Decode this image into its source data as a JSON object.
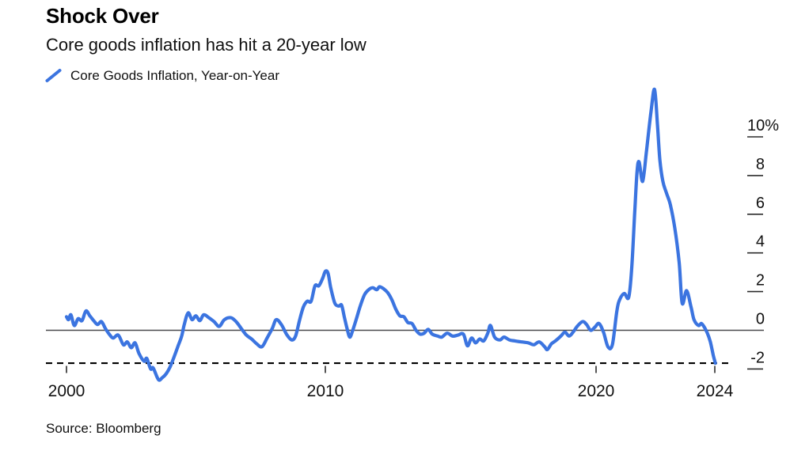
{
  "header": {
    "title": "Shock Over",
    "subtitle": "Core goods inflation has hit a 20-year low"
  },
  "legend": {
    "label": "Core Goods Inflation, Year-on-Year",
    "swatch_icon": "blue-diagonal-line-swatch-icon"
  },
  "source": "Source: Bloomberg",
  "colors": {
    "line": "#3B74E0",
    "zero_line": "#4A4A4D",
    "dashed_line": "#000000",
    "tick": "#2B2B2B",
    "text": "#111111",
    "background": "#FFFFFF"
  },
  "chart_data": {
    "type": "line",
    "title": "Shock Over",
    "subtitle": "Core goods inflation has hit a 20-year low",
    "xlabel": "",
    "ylabel": "Core goods inflation, year-on-year, %",
    "xlim": [
      2000,
      2024.3
    ],
    "ylim": [
      -2.8,
      12.6
    ],
    "grid": "none, zero baseline only",
    "legend_position": "top-left",
    "x_ticks": [
      {
        "year": 2000,
        "label": "2000"
      },
      {
        "year": 2010,
        "label": "2010"
      },
      {
        "year": 2020,
        "label": "2020"
      },
      {
        "year": 2024,
        "label": "2024"
      }
    ],
    "y_ticks": [
      {
        "value": 10,
        "label": "10%"
      },
      {
        "value": 8,
        "label": "8"
      },
      {
        "value": 6,
        "label": "6"
      },
      {
        "value": 4,
        "label": "4"
      },
      {
        "value": 2,
        "label": "2"
      },
      {
        "value": 0,
        "label": "0"
      },
      {
        "value": -2,
        "label": "-2"
      }
    ],
    "annotations": [
      {
        "type": "dashed-horizontal-line",
        "value": -1.7
      }
    ],
    "series": [
      {
        "name": "Core Goods Inflation, Year-on-Year",
        "color": "#3B74E0",
        "points": [
          [
            2000.0,
            0.7
          ],
          [
            2000.08,
            0.55
          ],
          [
            2000.17,
            0.8
          ],
          [
            2000.3,
            0.25
          ],
          [
            2000.45,
            0.6
          ],
          [
            2000.6,
            0.5
          ],
          [
            2000.75,
            1.0
          ],
          [
            2000.9,
            0.75
          ],
          [
            2001.05,
            0.5
          ],
          [
            2001.2,
            0.3
          ],
          [
            2001.35,
            0.45
          ],
          [
            2001.5,
            0.1
          ],
          [
            2001.65,
            -0.2
          ],
          [
            2001.8,
            -0.4
          ],
          [
            2002.0,
            -0.25
          ],
          [
            2002.2,
            -0.75
          ],
          [
            2002.35,
            -0.6
          ],
          [
            2002.5,
            -0.9
          ],
          [
            2002.65,
            -0.65
          ],
          [
            2002.8,
            -1.2
          ],
          [
            2003.0,
            -1.6
          ],
          [
            2003.1,
            -1.45
          ],
          [
            2003.25,
            -2.0
          ],
          [
            2003.35,
            -1.95
          ],
          [
            2003.55,
            -2.55
          ],
          [
            2003.7,
            -2.45
          ],
          [
            2003.85,
            -2.25
          ],
          [
            2004.0,
            -1.9
          ],
          [
            2004.15,
            -1.4
          ],
          [
            2004.3,
            -0.85
          ],
          [
            2004.45,
            -0.3
          ],
          [
            2004.55,
            0.3
          ],
          [
            2004.7,
            0.9
          ],
          [
            2004.85,
            0.55
          ],
          [
            2005.0,
            0.75
          ],
          [
            2005.15,
            0.5
          ],
          [
            2005.3,
            0.8
          ],
          [
            2005.5,
            0.65
          ],
          [
            2005.7,
            0.45
          ],
          [
            2005.9,
            0.2
          ],
          [
            2006.1,
            0.55
          ],
          [
            2006.35,
            0.65
          ],
          [
            2006.55,
            0.45
          ],
          [
            2006.75,
            0.1
          ],
          [
            2006.95,
            -0.25
          ],
          [
            2007.15,
            -0.45
          ],
          [
            2007.35,
            -0.7
          ],
          [
            2007.55,
            -0.85
          ],
          [
            2007.75,
            -0.4
          ],
          [
            2007.95,
            0.1
          ],
          [
            2008.1,
            0.55
          ],
          [
            2008.3,
            0.3
          ],
          [
            2008.5,
            -0.2
          ],
          [
            2008.7,
            -0.5
          ],
          [
            2008.85,
            -0.3
          ],
          [
            2009.0,
            0.5
          ],
          [
            2009.15,
            1.2
          ],
          [
            2009.3,
            1.5
          ],
          [
            2009.45,
            1.5
          ],
          [
            2009.6,
            2.3
          ],
          [
            2009.75,
            2.3
          ],
          [
            2009.9,
            2.7
          ],
          [
            2010.0,
            3.05
          ],
          [
            2010.1,
            2.95
          ],
          [
            2010.2,
            2.2
          ],
          [
            2010.35,
            1.4
          ],
          [
            2010.5,
            1.25
          ],
          [
            2010.6,
            1.3
          ],
          [
            2010.7,
            0.7
          ],
          [
            2010.8,
            0.1
          ],
          [
            2010.9,
            -0.35
          ],
          [
            2011.0,
            -0.05
          ],
          [
            2011.15,
            0.6
          ],
          [
            2011.3,
            1.3
          ],
          [
            2011.45,
            1.85
          ],
          [
            2011.6,
            2.1
          ],
          [
            2011.75,
            2.2
          ],
          [
            2011.9,
            2.1
          ],
          [
            2012.0,
            2.25
          ],
          [
            2012.15,
            2.15
          ],
          [
            2012.3,
            1.95
          ],
          [
            2012.45,
            1.6
          ],
          [
            2012.6,
            1.1
          ],
          [
            2012.75,
            0.75
          ],
          [
            2012.9,
            0.7
          ],
          [
            2013.05,
            0.4
          ],
          [
            2013.2,
            0.35
          ],
          [
            2013.35,
            0.0
          ],
          [
            2013.5,
            -0.2
          ],
          [
            2013.65,
            -0.15
          ],
          [
            2013.8,
            0.05
          ],
          [
            2013.95,
            -0.2
          ],
          [
            2014.15,
            -0.3
          ],
          [
            2014.3,
            -0.35
          ],
          [
            2014.5,
            -0.15
          ],
          [
            2014.7,
            -0.3
          ],
          [
            2014.9,
            -0.25
          ],
          [
            2015.1,
            -0.2
          ],
          [
            2015.25,
            -0.8
          ],
          [
            2015.4,
            -0.4
          ],
          [
            2015.55,
            -0.65
          ],
          [
            2015.7,
            -0.45
          ],
          [
            2015.85,
            -0.55
          ],
          [
            2016.0,
            -0.15
          ],
          [
            2016.1,
            0.25
          ],
          [
            2016.25,
            -0.35
          ],
          [
            2016.45,
            -0.5
          ],
          [
            2016.6,
            -0.35
          ],
          [
            2016.8,
            -0.5
          ],
          [
            2017.0,
            -0.55
          ],
          [
            2017.25,
            -0.6
          ],
          [
            2017.5,
            -0.65
          ],
          [
            2017.7,
            -0.75
          ],
          [
            2017.9,
            -0.6
          ],
          [
            2018.1,
            -0.85
          ],
          [
            2018.2,
            -1.0
          ],
          [
            2018.35,
            -0.7
          ],
          [
            2018.5,
            -0.55
          ],
          [
            2018.7,
            -0.3
          ],
          [
            2018.85,
            -0.1
          ],
          [
            2019.0,
            -0.3
          ],
          [
            2019.15,
            -0.1
          ],
          [
            2019.3,
            0.2
          ],
          [
            2019.5,
            0.45
          ],
          [
            2019.65,
            0.3
          ],
          [
            2019.8,
            0.0
          ],
          [
            2019.95,
            0.15
          ],
          [
            2020.1,
            0.35
          ],
          [
            2020.25,
            -0.1
          ],
          [
            2020.4,
            -0.85
          ],
          [
            2020.55,
            -0.75
          ],
          [
            2020.7,
            1.0
          ],
          [
            2020.8,
            1.6
          ],
          [
            2020.95,
            1.9
          ],
          [
            2021.1,
            1.7
          ],
          [
            2021.2,
            3.2
          ],
          [
            2021.3,
            6.0
          ],
          [
            2021.38,
            8.2
          ],
          [
            2021.45,
            8.7
          ],
          [
            2021.57,
            7.7
          ],
          [
            2021.7,
            9.3
          ],
          [
            2021.85,
            11.3
          ],
          [
            2021.97,
            12.45
          ],
          [
            2022.07,
            10.6
          ],
          [
            2022.15,
            8.8
          ],
          [
            2022.25,
            7.7
          ],
          [
            2022.37,
            7.1
          ],
          [
            2022.5,
            6.5
          ],
          [
            2022.65,
            5.3
          ],
          [
            2022.8,
            3.5
          ],
          [
            2022.9,
            1.4
          ],
          [
            2023.05,
            2.05
          ],
          [
            2023.2,
            1.2
          ],
          [
            2023.3,
            0.55
          ],
          [
            2023.45,
            0.25
          ],
          [
            2023.55,
            0.35
          ],
          [
            2023.65,
            0.15
          ],
          [
            2023.75,
            -0.15
          ],
          [
            2023.85,
            -0.6
          ],
          [
            2023.95,
            -1.3
          ],
          [
            2024.02,
            -1.7
          ]
        ]
      }
    ]
  }
}
